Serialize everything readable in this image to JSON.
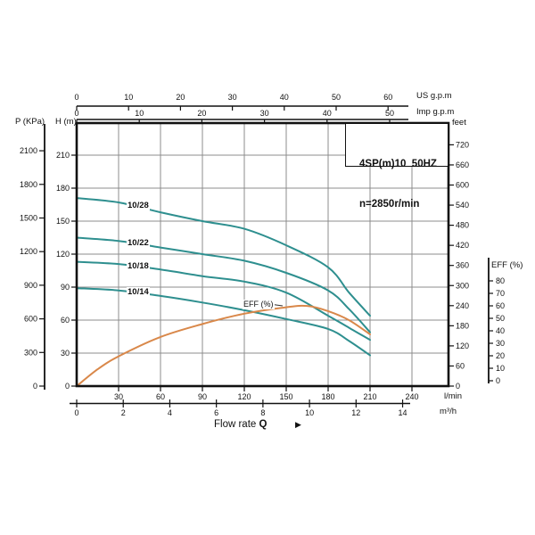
{
  "chart_data": {
    "type": "line",
    "title": "4SP(m)10  50HZ",
    "subtitle": "n=2850r/min",
    "xlabel": "Flow rate",
    "xlabel_symbol": "Q",
    "grid": true,
    "legend_position": "labels-on-curves",
    "x_axes": [
      {
        "id": "us_gpm",
        "label": "US g.p.m",
        "ticks": [
          0,
          10,
          20,
          30,
          40,
          50,
          60
        ]
      },
      {
        "id": "imp_gpm",
        "label": "Imp g.p.m",
        "ticks": [
          0,
          10,
          20,
          30,
          40,
          50
        ]
      },
      {
        "id": "l_min",
        "label": "l/min",
        "ticks": [
          30,
          60,
          90,
          120,
          150,
          180,
          210,
          240
        ],
        "range": [
          0,
          266
        ]
      },
      {
        "id": "m3_h",
        "label": "m³/h",
        "ticks": [
          0,
          2,
          4,
          6,
          8,
          10,
          12,
          14
        ]
      }
    ],
    "y_axes": [
      {
        "id": "p_kpa",
        "label": "P (KPa)",
        "ticks": [
          2100,
          1800,
          1500,
          1200,
          900,
          600,
          300,
          0
        ]
      },
      {
        "id": "h_m",
        "label": "H (m)",
        "ticks": [
          210,
          180,
          150,
          120,
          90,
          60,
          30,
          0
        ],
        "range": [
          0,
          240
        ]
      },
      {
        "id": "feet",
        "label": "feet",
        "ticks": [
          720,
          660,
          600,
          540,
          480,
          420,
          360,
          300,
          240,
          180,
          120,
          60,
          0
        ]
      },
      {
        "id": "eff_pct",
        "label": "EFF (%)",
        "ticks": [
          80,
          70,
          60,
          50,
          40,
          30,
          20,
          10,
          0
        ]
      }
    ],
    "series": [
      {
        "name": "10/28",
        "x_l_min": [
          0,
          30,
          60,
          90,
          120,
          150,
          180,
          195,
          210
        ],
        "head_m": [
          171,
          167,
          158,
          150,
          143,
          128,
          108,
          85,
          64
        ]
      },
      {
        "name": "10/22",
        "x_l_min": [
          0,
          30,
          60,
          90,
          120,
          150,
          180,
          195,
          210
        ],
        "head_m": [
          135,
          132,
          126,
          120,
          114,
          103,
          87,
          70,
          49
        ]
      },
      {
        "name": "10/18",
        "x_l_min": [
          0,
          30,
          60,
          90,
          120,
          150,
          180,
          195,
          210
        ],
        "head_m": [
          113,
          111,
          106,
          100,
          95,
          85,
          64,
          53,
          42
        ]
      },
      {
        "name": "10/14",
        "x_l_min": [
          0,
          30,
          60,
          90,
          120,
          150,
          180,
          195,
          210
        ],
        "head_m": [
          89,
          87,
          82,
          76,
          69,
          61,
          52,
          41,
          28
        ]
      }
    ],
    "efficiency_series": {
      "name": "EFF (%)",
      "x_l_min": [
        0,
        15,
        30,
        60,
        90,
        120,
        150,
        165,
        180,
        195,
        210
      ],
      "eff_pct": [
        0,
        13,
        23,
        38,
        48,
        56,
        61,
        62,
        58,
        51,
        40
      ]
    },
    "colors": {
      "head_curves": "#2e8f8f",
      "efficiency_curve": "#d9884a",
      "grid": "#8c8c8c",
      "axis": "#111111"
    }
  },
  "icons": {
    "flow_direction_arrow": "▶"
  }
}
